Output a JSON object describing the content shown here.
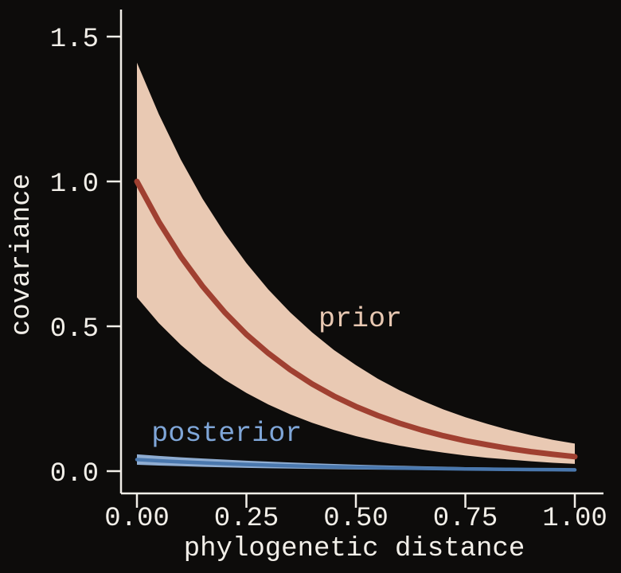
{
  "figure": {
    "background": "#0d0c0b",
    "axis_color": "#f2efe9"
  },
  "chart_data": {
    "type": "line",
    "title": "",
    "xlabel": "phylogenetic distance",
    "ylabel": "covariance",
    "xlim": [
      -0.04,
      1.07
    ],
    "ylim": [
      -0.08,
      1.58
    ],
    "grid": false,
    "legend": "inline-annotations",
    "x_ticks": [
      {
        "value": 0.0,
        "label": "0.00"
      },
      {
        "value": 0.25,
        "label": "0.25"
      },
      {
        "value": 0.5,
        "label": "0.50"
      },
      {
        "value": 0.75,
        "label": "0.75"
      },
      {
        "value": 1.0,
        "label": "1.00"
      }
    ],
    "y_ticks": [
      {
        "value": 0.0,
        "label": "0.0"
      },
      {
        "value": 0.5,
        "label": "0.5"
      },
      {
        "value": 1.0,
        "label": "1.0"
      },
      {
        "value": 1.5,
        "label": "1.5"
      }
    ],
    "x": [
      0,
      0.05,
      0.1,
      0.15,
      0.2,
      0.25,
      0.3,
      0.35,
      0.4,
      0.45,
      0.5,
      0.55,
      0.6,
      0.65,
      0.7,
      0.75,
      0.8,
      0.85,
      0.9,
      0.95,
      1.0
    ],
    "series": [
      {
        "name": "prior",
        "color": "#a04031",
        "band_color": "#e9c9b3",
        "line_width": 7,
        "mean": [
          1.0,
          0.861,
          0.741,
          0.638,
          0.549,
          0.472,
          0.407,
          0.35,
          0.301,
          0.259,
          0.223,
          0.192,
          0.165,
          0.142,
          0.122,
          0.105,
          0.091,
          0.078,
          0.067,
          0.058,
          0.05
        ],
        "upper": [
          1.41,
          1.232,
          1.076,
          0.94,
          0.822,
          0.718,
          0.627,
          0.548,
          0.479,
          0.418,
          0.366,
          0.319,
          0.279,
          0.244,
          0.213,
          0.186,
          0.163,
          0.142,
          0.124,
          0.108,
          0.095
        ],
        "lower": [
          0.6,
          0.511,
          0.436,
          0.371,
          0.316,
          0.27,
          0.23,
          0.196,
          0.167,
          0.142,
          0.121,
          0.103,
          0.088,
          0.075,
          0.064,
          0.054,
          0.046,
          0.04,
          0.034,
          0.029,
          0.025
        ],
        "label": {
          "text": "prior",
          "x": 0.51,
          "y": 0.5,
          "color": "#e9c9b3"
        }
      },
      {
        "name": "posterior",
        "color": "#4a78ae",
        "band_color": "#8fadd2",
        "line_width": 4.5,
        "mean": [
          0.04,
          0.0358,
          0.0321,
          0.0288,
          0.0258,
          0.0231,
          0.0207,
          0.0185,
          0.0166,
          0.0149,
          0.0133,
          0.0119,
          0.0107,
          0.0096,
          0.0086,
          0.0077,
          0.0069,
          0.0062,
          0.0055,
          0.005,
          0.0044
        ],
        "upper": [
          0.058,
          0.0527,
          0.0479,
          0.0436,
          0.0397,
          0.0361,
          0.0328,
          0.0298,
          0.0271,
          0.0247,
          0.0224,
          0.0204,
          0.0185,
          0.0169,
          0.0153,
          0.0139,
          0.0127,
          0.0115,
          0.0105,
          0.0095,
          0.0087
        ],
        "lower": [
          0.022,
          0.0193,
          0.017,
          0.0149,
          0.0131,
          0.0115,
          0.0101,
          0.0089,
          0.0078,
          0.0069,
          0.006,
          0.0053,
          0.0047,
          0.0041,
          0.0036,
          0.0032,
          0.0028,
          0.0024,
          0.0021,
          0.0019,
          0.0016
        ],
        "label": {
          "text": "posterior",
          "x": 0.205,
          "y": 0.105,
          "color": "#7fa6d8"
        }
      }
    ]
  }
}
